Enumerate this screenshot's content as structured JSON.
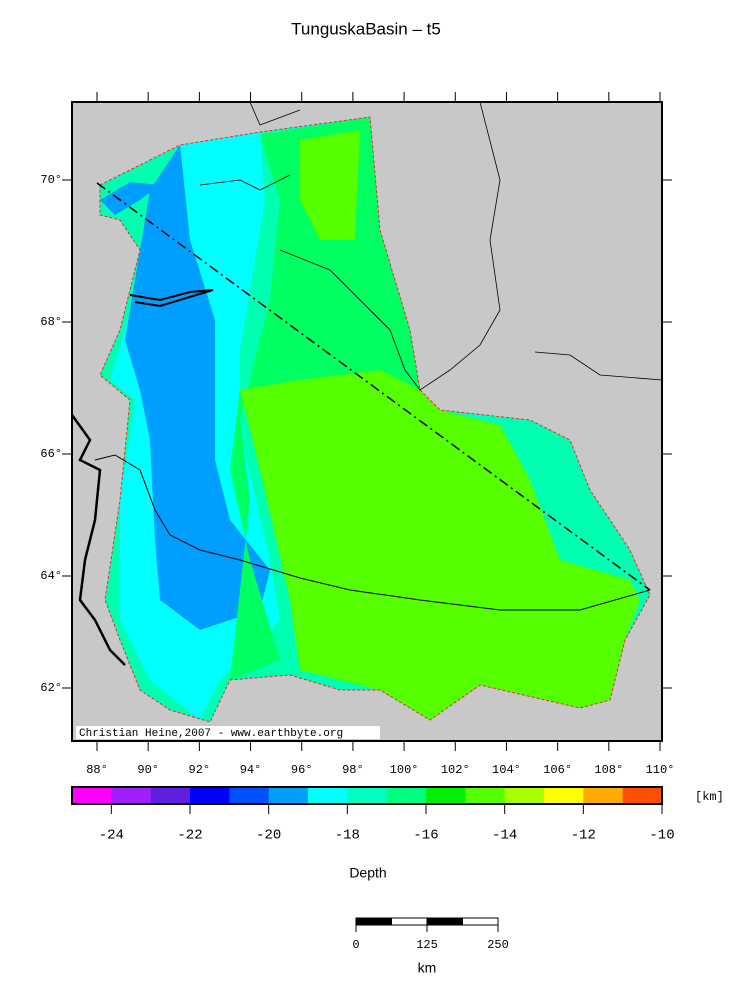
{
  "title": "TunguskaBasin – t5",
  "map": {
    "lat_ticks": [
      {
        "value": 62,
        "label": "62°"
      },
      {
        "value": 64,
        "label": "64°"
      },
      {
        "value": 66,
        "label": "66°"
      },
      {
        "value": 68,
        "label": "68°"
      },
      {
        "value": 70,
        "label": "70°"
      }
    ],
    "lon_ticks": [
      {
        "value": 88,
        "label": "88°"
      },
      {
        "value": 90,
        "label": "90°"
      },
      {
        "value": 92,
        "label": "92°"
      },
      {
        "value": 94,
        "label": "94°"
      },
      {
        "value": 96,
        "label": "96°"
      },
      {
        "value": 98,
        "label": "98°"
      },
      {
        "value": 100,
        "label": "100°"
      },
      {
        "value": 102,
        "label": "102°"
      },
      {
        "value": 104,
        "label": "104°"
      },
      {
        "value": 106,
        "label": "106°"
      },
      {
        "value": 108,
        "label": "108°"
      },
      {
        "value": 110,
        "label": "110°"
      }
    ],
    "credit": "Christian Heine,2007 - www.earthbyte.org"
  },
  "colorbar": {
    "lim": [
      -25,
      -10
    ],
    "unit": "[km]",
    "label": "Depth",
    "colors": [
      "#ff00ff",
      "#a01fff",
      "#601fe0",
      "#0000ff",
      "#0050ff",
      "#009fff",
      "#00ffff",
      "#00ffbf",
      "#00ff80",
      "#00f000",
      "#55ff00",
      "#aaff00",
      "#ffff00",
      "#ffaa00",
      "#ff5000"
    ],
    "ticks": [
      -24,
      -22,
      -20,
      -18,
      -16,
      -14,
      -12,
      -10
    ]
  },
  "scale_bar": {
    "ticks": [
      0,
      125,
      250
    ],
    "unit": "km"
  }
}
